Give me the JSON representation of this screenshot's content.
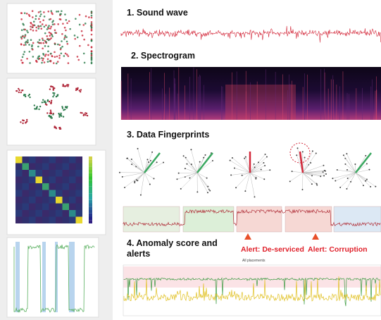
{
  "sections": [
    {
      "title": "1. Sound wave"
    },
    {
      "title": "2. Spectrogram"
    },
    {
      "title": "3. Data Fingerprints"
    },
    {
      "title": "4. Anomaly score and alerts"
    }
  ],
  "alerts": [
    {
      "label": "Alert: De-serviced"
    },
    {
      "label": "Alert: Corruption"
    }
  ],
  "anomaly_chart": {
    "subtitle": "All placements"
  }
}
